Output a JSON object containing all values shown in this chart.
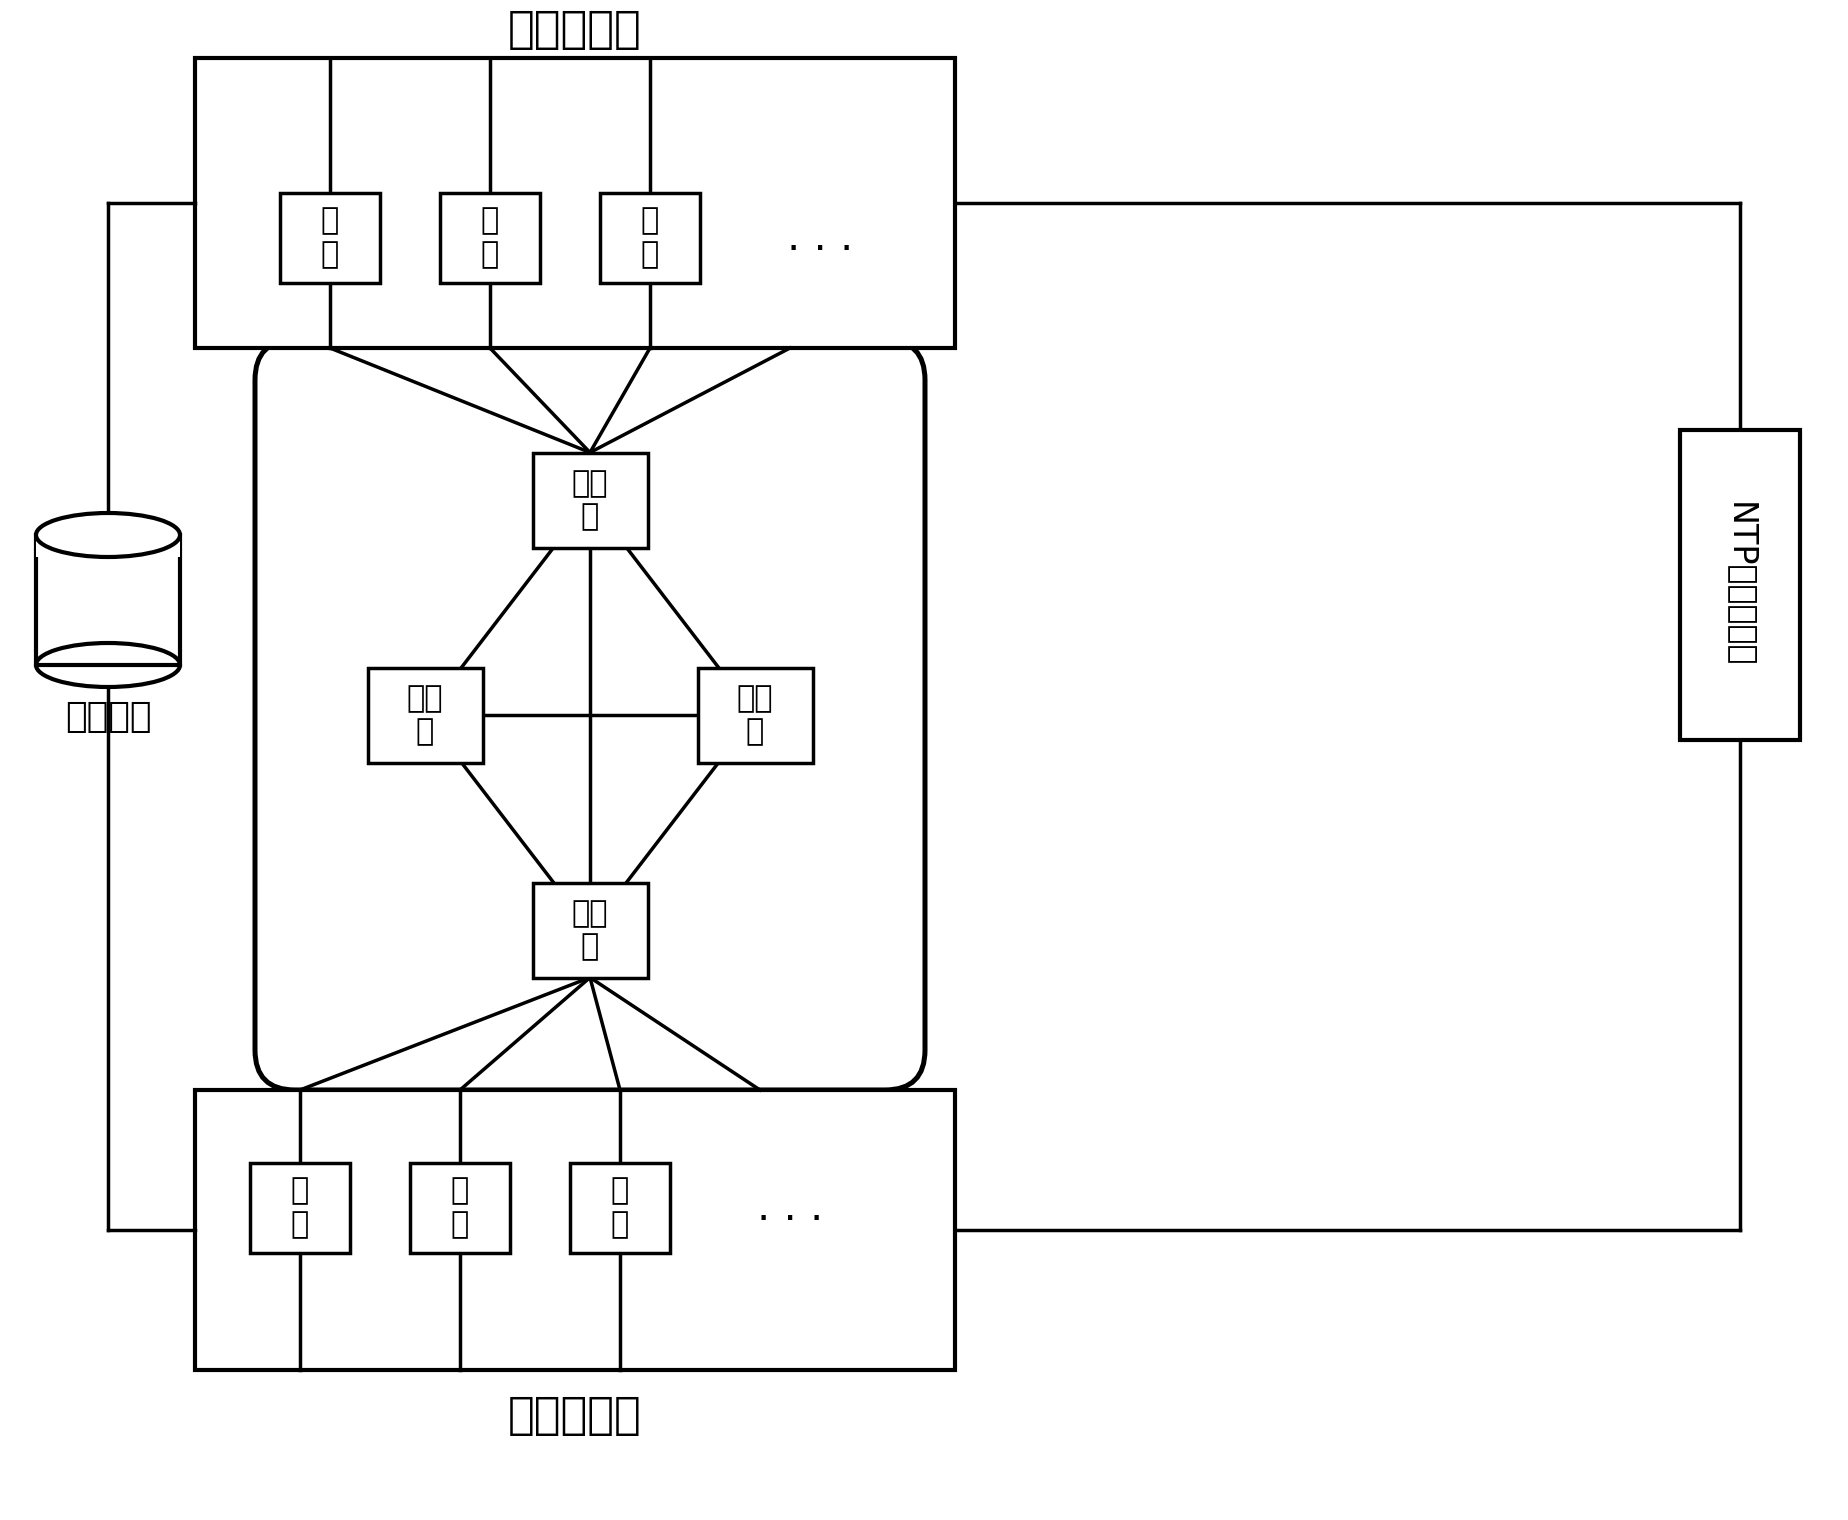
{
  "title_top": "会话接收端",
  "title_bottom": "会话发起端",
  "label_db": "数据处理",
  "label_ntp": "NTP时钟服务器",
  "label_router": "路由\n器",
  "label_host": "主\n机",
  "bg_color": "#ffffff",
  "line_color": "#000000",
  "box_color": "#ffffff",
  "font_size_title": 32,
  "font_size_label": 26,
  "font_size_box": 22,
  "font_size_dots": 30
}
